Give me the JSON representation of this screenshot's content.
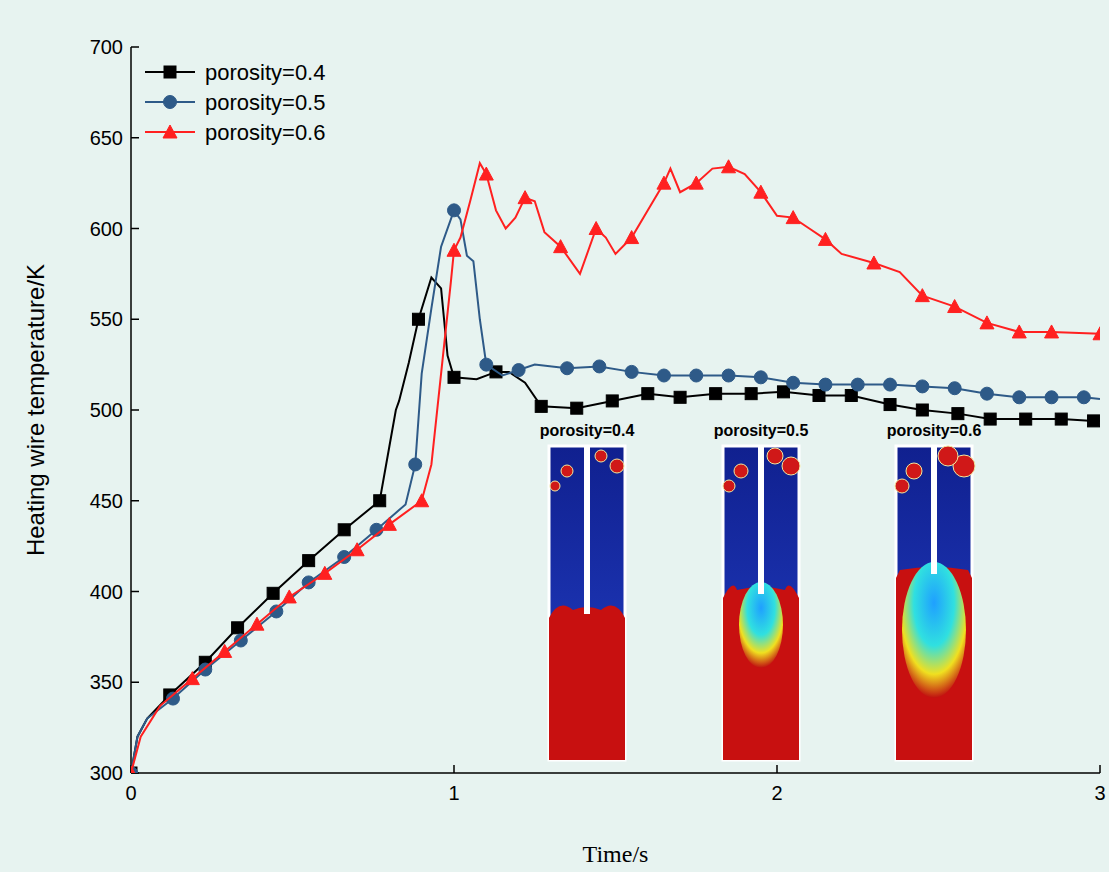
{
  "chart_data": {
    "type": "line",
    "x_label": "Time/s",
    "y_label": "Heating wire temperature/K",
    "xlim": [
      0,
      3
    ],
    "ylim": [
      300,
      700
    ],
    "xticks": [
      0,
      1,
      2,
      3
    ],
    "yticks": [
      300,
      350,
      400,
      450,
      500,
      550,
      600,
      650,
      700
    ],
    "legend": "top-left",
    "grid": false,
    "annotations": [
      "porosity=0.4",
      "porosity=0.5",
      "porosity=0.6"
    ],
    "series": [
      {
        "name": "porosity=0.4",
        "color": "#000000",
        "marker": "square",
        "line_style": "solid",
        "x": [
          0,
          0.02,
          0.05,
          0.12,
          0.23,
          0.33,
          0.44,
          0.55,
          0.66,
          0.77,
          0.8,
          0.82,
          0.83,
          0.86,
          0.89,
          0.93,
          0.96,
          0.98,
          1.0,
          1.07,
          1.13,
          1.17,
          1.22,
          1.27,
          1.38,
          1.49,
          1.6,
          1.7,
          1.81,
          1.92,
          2.02,
          2.13,
          2.23,
          2.35,
          2.45,
          2.56,
          2.66,
          2.77,
          2.88,
          2.98,
          3.0
        ],
        "values": [
          300,
          320,
          330,
          343,
          361,
          380,
          399,
          417,
          434,
          450,
          480,
          500,
          505,
          526,
          550,
          573,
          567,
          530,
          518,
          517,
          521,
          521,
          515,
          502,
          501,
          505,
          509,
          507,
          509,
          509,
          510,
          508,
          508,
          503,
          500,
          498,
          495,
          495,
          495,
          494,
          494
        ]
      },
      {
        "name": "porosity=0.5",
        "color": "#2e5a88",
        "marker": "circle",
        "line_style": "solid",
        "x": [
          0,
          0.02,
          0.05,
          0.13,
          0.23,
          0.34,
          0.45,
          0.55,
          0.66,
          0.76,
          0.85,
          0.88,
          0.9,
          0.93,
          0.96,
          1.0,
          1.02,
          1.04,
          1.06,
          1.08,
          1.1,
          1.15,
          1.2,
          1.25,
          1.35,
          1.45,
          1.55,
          1.65,
          1.75,
          1.85,
          1.95,
          2.05,
          2.15,
          2.25,
          2.35,
          2.45,
          2.55,
          2.65,
          2.75,
          2.85,
          2.95,
          3.0
        ],
        "values": [
          300,
          320,
          330,
          341,
          357,
          373,
          389,
          405,
          419,
          434,
          448,
          470,
          520,
          556,
          590,
          610,
          605,
          585,
          582,
          550,
          525,
          519,
          522,
          525,
          523,
          524,
          521,
          519,
          519,
          519,
          518,
          515,
          514,
          514,
          514,
          513,
          512,
          509,
          507,
          507,
          507,
          506
        ]
      },
      {
        "name": "porosity=0.6",
        "color": "#ff2020",
        "marker": "triangle",
        "line_style": "solid",
        "x": [
          0,
          0.03,
          0.09,
          0.19,
          0.29,
          0.39,
          0.49,
          0.6,
          0.7,
          0.8,
          0.9,
          0.93,
          0.96,
          0.99,
          1.0,
          1.02,
          1.05,
          1.08,
          1.1,
          1.13,
          1.16,
          1.19,
          1.22,
          1.25,
          1.28,
          1.33,
          1.39,
          1.44,
          1.47,
          1.5,
          1.55,
          1.6,
          1.65,
          1.67,
          1.7,
          1.75,
          1.8,
          1.85,
          1.9,
          1.95,
          2.0,
          2.05,
          2.1,
          2.15,
          2.2,
          2.3,
          2.38,
          2.45,
          2.55,
          2.65,
          2.75,
          2.85,
          3.0
        ],
        "values": [
          300,
          320,
          337,
          352,
          367,
          382,
          397,
          410,
          423,
          437,
          450,
          470,
          520,
          570,
          588,
          595,
          615,
          636,
          630,
          610,
          600,
          606,
          617,
          615,
          598,
          590,
          575,
          600,
          595,
          586,
          595,
          610,
          625,
          633,
          620,
          625,
          633,
          634,
          630,
          620,
          607,
          606,
          600,
          594,
          586,
          581,
          576,
          563,
          557,
          548,
          543,
          543,
          542
        ]
      }
    ]
  }
}
